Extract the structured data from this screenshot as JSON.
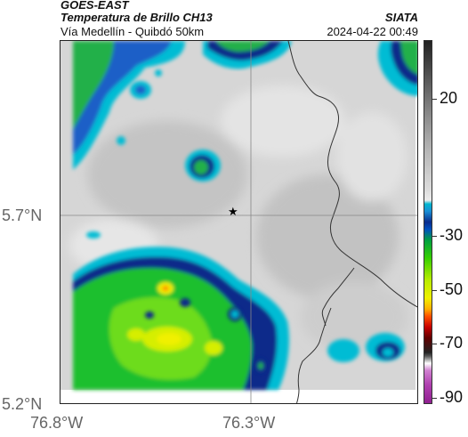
{
  "header": {
    "satellite": "GOES-EAST",
    "product": "Temperatura de Brillo CH13",
    "route": "Vía Medellín - Quibdó 50km",
    "org": "SIATA",
    "datetime": "2024-04-22 00:49"
  },
  "axes": {
    "lat_ticks": [
      "5.7°N",
      "5.2°N"
    ],
    "lon_ticks": [
      "76.8°W",
      "76.3°W"
    ]
  },
  "colorbar": {
    "labels": [
      "20",
      "-30",
      "-50",
      "-70",
      "-90"
    ]
  },
  "colors": {
    "cloud_gray": "#d9d9d9",
    "cyan": "#00bcd4",
    "deep_blue": "#0a2a8a",
    "green": "#1fbf2f",
    "yellow": "#f0f000"
  },
  "marker": {
    "symbol": "★"
  }
}
